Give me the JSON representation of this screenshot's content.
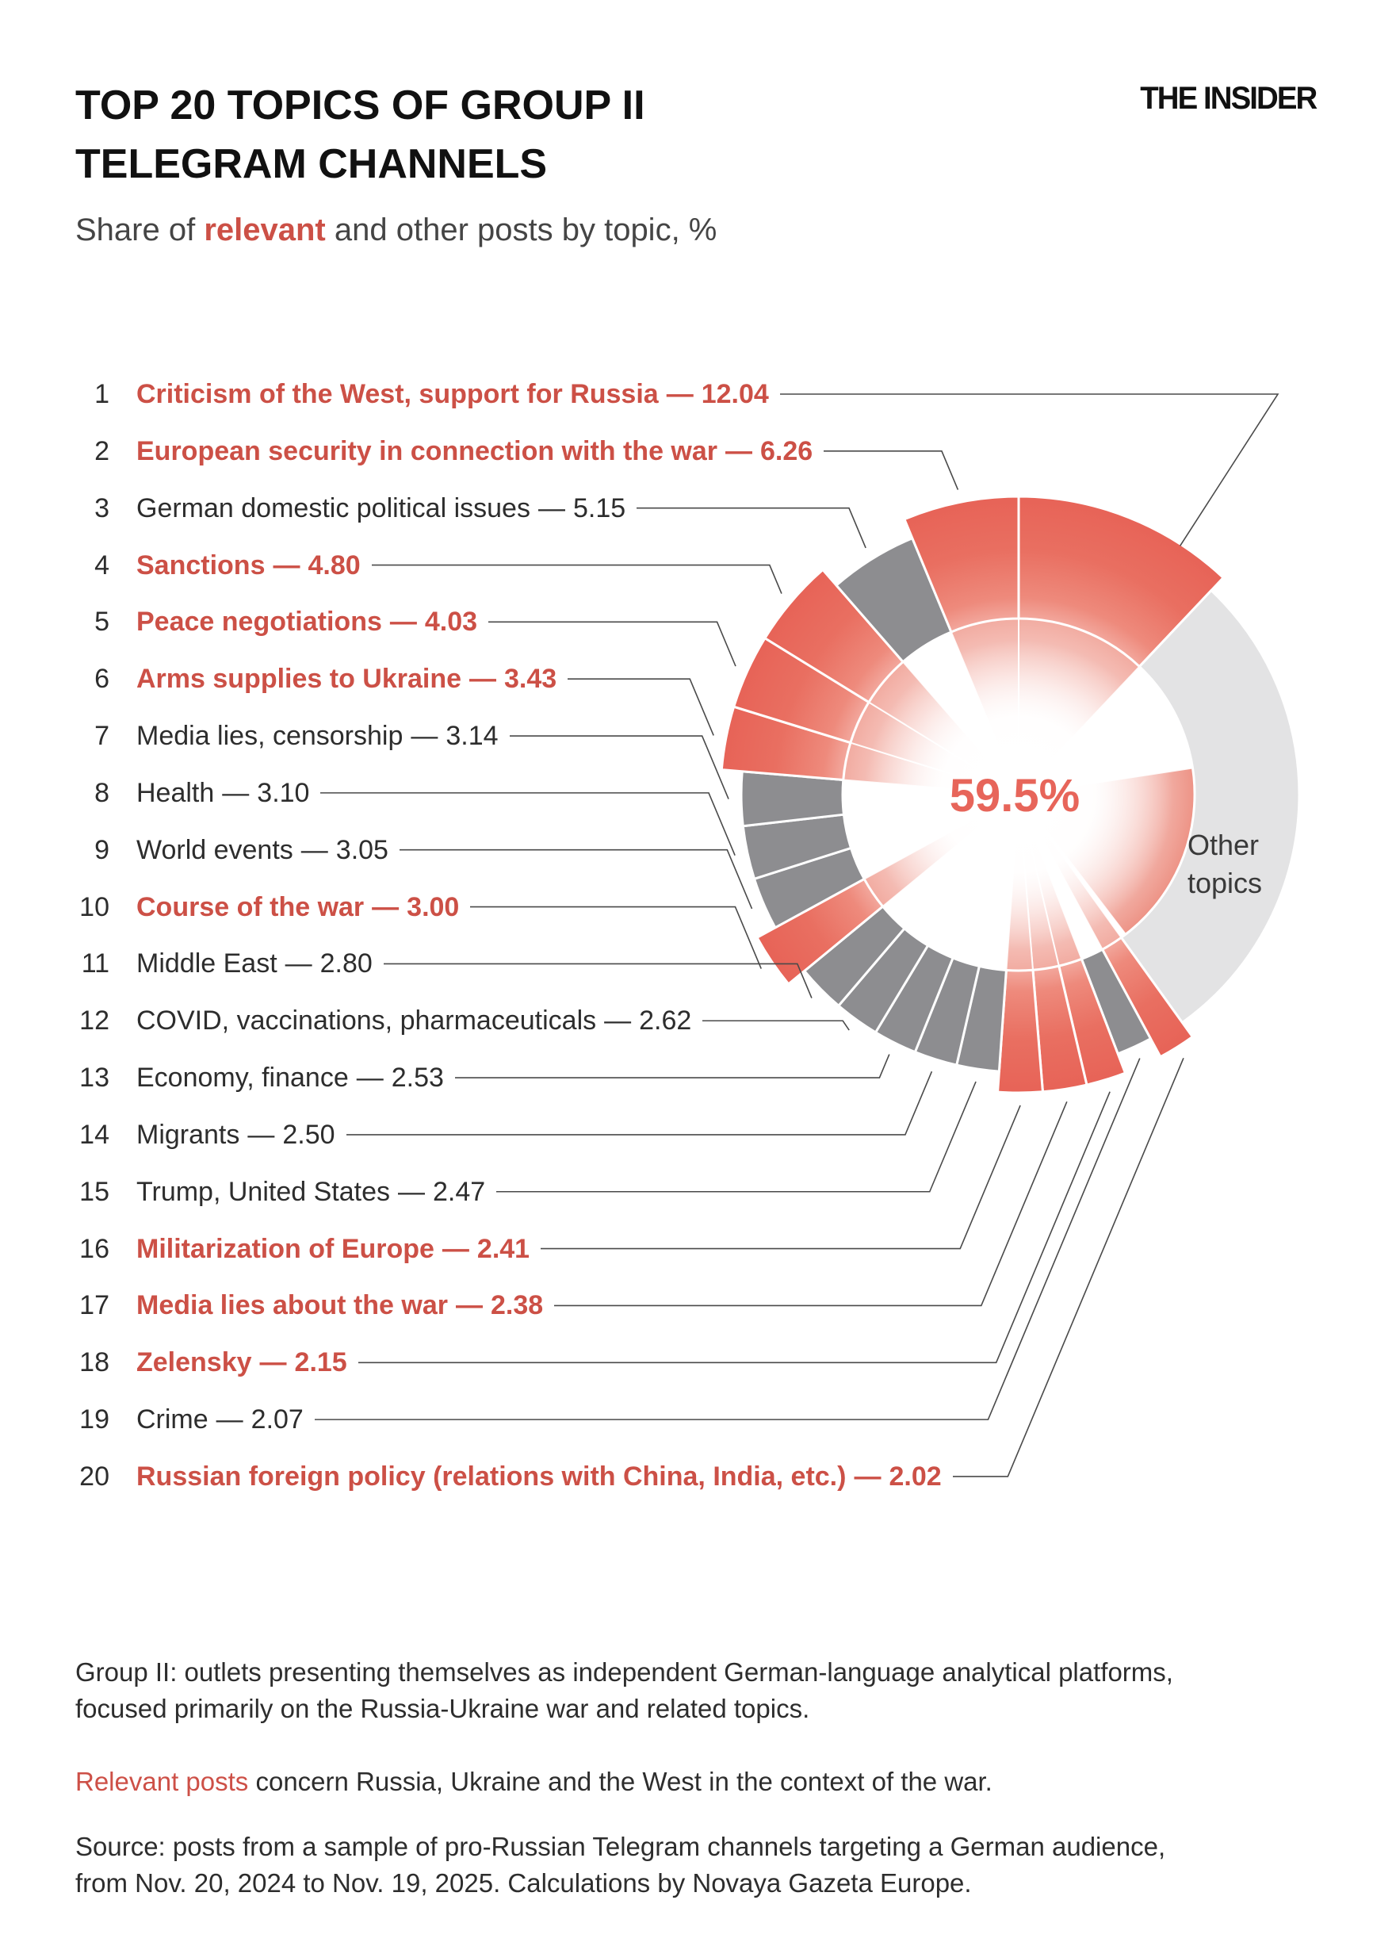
{
  "page": {
    "title_lines": [
      "TOP 20 TOPICS OF GROUP II",
      "TELEGRAM CHANNELS"
    ],
    "subtitle": {
      "prefix": "Share of ",
      "highlight": "relevant",
      "suffix": " and other posts by topic, %"
    },
    "logo": "THE INSIDER",
    "list_separator": "—"
  },
  "chart_data": {
    "type": "pie",
    "title": "Top 20 topics of Group II Telegram channels",
    "units": "share of posts, %",
    "center_label": "59.5%",
    "legend_note": "red = relevant topics, dark gray = other top-20 topics, light gray = other topics",
    "other_segment": {
      "label_lines": [
        "Other",
        "topics"
      ],
      "value": 28.05,
      "relevant_share_within": 17.0
    },
    "topics": [
      {
        "rank": 1,
        "label": "Criticism of the West, support for Russia",
        "value": 12.04,
        "display": "12.04",
        "relevant": true
      },
      {
        "rank": 2,
        "label": "European security in connection with the war",
        "value": 6.26,
        "display": "6.26",
        "relevant": true
      },
      {
        "rank": 3,
        "label": "German domestic political issues",
        "value": 5.15,
        "display": "5.15",
        "relevant": false
      },
      {
        "rank": 4,
        "label": "Sanctions",
        "value": 4.8,
        "display": "4.80",
        "relevant": true
      },
      {
        "rank": 5,
        "label": "Peace negotiations",
        "value": 4.03,
        "display": "4.03",
        "relevant": true
      },
      {
        "rank": 6,
        "label": "Arms supplies to Ukraine",
        "value": 3.43,
        "display": "3.43",
        "relevant": true
      },
      {
        "rank": 7,
        "label": "Media lies, censorship",
        "value": 3.14,
        "display": "3.14",
        "relevant": false
      },
      {
        "rank": 8,
        "label": "Health",
        "value": 3.1,
        "display": "3.10",
        "relevant": false
      },
      {
        "rank": 9,
        "label": "World events",
        "value": 3.05,
        "display": "3.05",
        "relevant": false
      },
      {
        "rank": 10,
        "label": "Course of the war",
        "value": 3.0,
        "display": "3.00",
        "relevant": true
      },
      {
        "rank": 11,
        "label": "Middle East",
        "value": 2.8,
        "display": "2.80",
        "relevant": false
      },
      {
        "rank": 12,
        "label": "COVID, vaccinations, pharmaceuticals",
        "value": 2.62,
        "display": "2.62",
        "relevant": false
      },
      {
        "rank": 13,
        "label": "Economy, finance",
        "value": 2.53,
        "display": "2.53",
        "relevant": false
      },
      {
        "rank": 14,
        "label": "Migrants",
        "value": 2.5,
        "display": "2.50",
        "relevant": false
      },
      {
        "rank": 15,
        "label": "Trump, United States",
        "value": 2.47,
        "display": "2.47",
        "relevant": false
      },
      {
        "rank": 16,
        "label": "Militarization of Europe",
        "value": 2.41,
        "display": "2.41",
        "relevant": true
      },
      {
        "rank": 17,
        "label": "Media lies about the war",
        "value": 2.38,
        "display": "2.38",
        "relevant": true
      },
      {
        "rank": 18,
        "label": "Zelensky",
        "value": 2.15,
        "display": "2.15",
        "relevant": true
      },
      {
        "rank": 19,
        "label": "Crime",
        "value": 2.07,
        "display": "2.07",
        "relevant": false
      },
      {
        "rank": 20,
        "label": "Russian foreign policy (relations with China, India, etc.)",
        "value": 2.02,
        "display": "2.02",
        "relevant": true
      }
    ],
    "colors": {
      "relevant_wedge": "#e7655a",
      "relevant_text": "#cc5046",
      "non_relevant_wedge": "#8d8d90",
      "other_wedge": "#e3e3e4",
      "leader_line": "#4a4a4a",
      "center_label": "#e7655a"
    }
  },
  "footer": {
    "group_note_lines": [
      "Group II: outlets presenting themselves as independent German-language analytical platforms,",
      "focused primarily on the Russia-Ukraine war and related topics."
    ],
    "relevant_note": {
      "highlight": "Relevant posts",
      "rest": " concern Russia, Ukraine and the West in the context of the war."
    },
    "source_lines": [
      "Source: posts from a sample of pro-Russian Telegram channels targeting a German audience,",
      "from Nov. 20, 2024 to Nov. 19, 2025. Calculations by Novaya Gazeta Europe."
    ]
  }
}
